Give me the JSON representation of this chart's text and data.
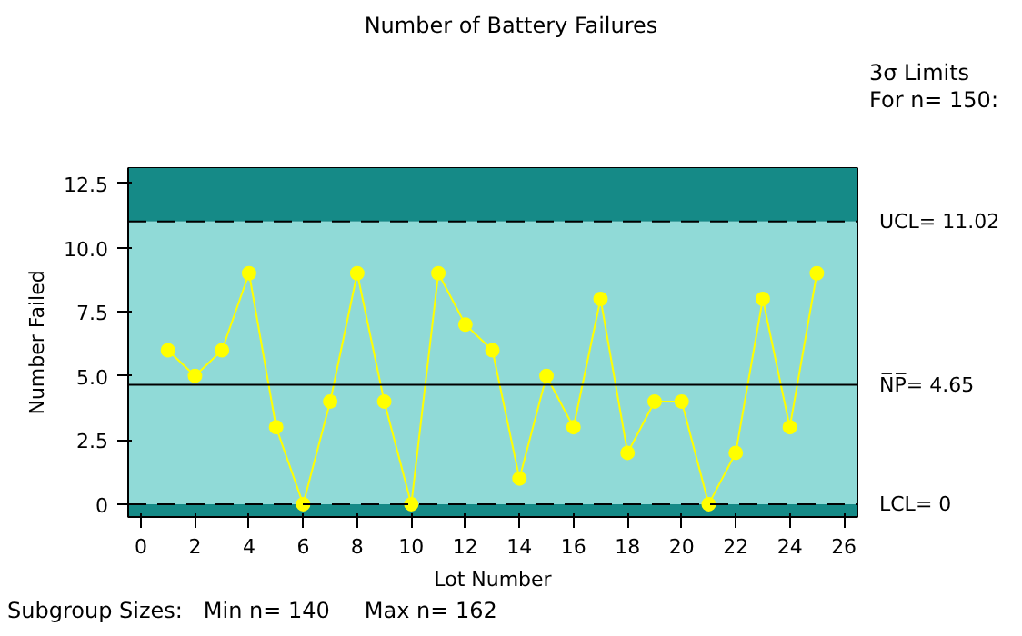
{
  "chart_data": {
    "type": "line",
    "title": "Number of Battery Failures",
    "xlabel": "Lot Number",
    "ylabel": "Number Failed",
    "x": [
      1,
      2,
      3,
      4,
      5,
      6,
      7,
      8,
      9,
      10,
      11,
      12,
      13,
      14,
      15,
      16,
      17,
      18,
      19,
      20,
      21,
      22,
      23,
      24,
      25
    ],
    "series": [
      {
        "color": "#ffff00",
        "values": [
          6,
          5,
          6,
          9,
          3,
          0,
          4,
          9,
          4,
          0,
          9,
          7,
          6,
          1,
          5,
          3,
          8,
          2,
          4,
          4,
          0,
          2,
          8,
          3,
          9
        ]
      }
    ],
    "marker": "circle",
    "line_style": "solid",
    "xlim": [
      -0.47,
      26.5
    ],
    "ylim": [
      -0.5,
      13.1
    ],
    "xticks": [
      0,
      2,
      4,
      6,
      8,
      10,
      12,
      14,
      16,
      18,
      20,
      22,
      24,
      26
    ],
    "yticks": [
      0,
      2.5,
      {
        "value": 5,
        "label": "5.0"
      },
      7.5,
      {
        "value": 10,
        "label": "10.0"
      },
      12.5
    ],
    "ref_lines": [
      {
        "axis": "y",
        "value": 11.02,
        "label": "UCL= 11.02",
        "line_style": "dashed",
        "color": "#000000"
      },
      {
        "axis": "y",
        "value": 4.65,
        "label": "N̅P̅= 4.65",
        "line_style": "solid",
        "color": "#000000"
      },
      {
        "axis": "y",
        "value": 0,
        "label": "LCL= 0",
        "line_style": "dashed",
        "color": "#000000"
      }
    ],
    "bands": [
      {
        "axis": "y",
        "from": -0.5,
        "to": 0,
        "color": "#158a87"
      },
      {
        "axis": "y",
        "from": 0,
        "to": 11.02,
        "color": "#90dad7"
      },
      {
        "axis": "y",
        "from": 11.02,
        "to": 13.1,
        "color": "#158a87"
      }
    ],
    "annotations": [
      "3σ Limits",
      "For n= 150:",
      "Subgroup Sizes:   Min n= 140     Max n= 162"
    ]
  }
}
